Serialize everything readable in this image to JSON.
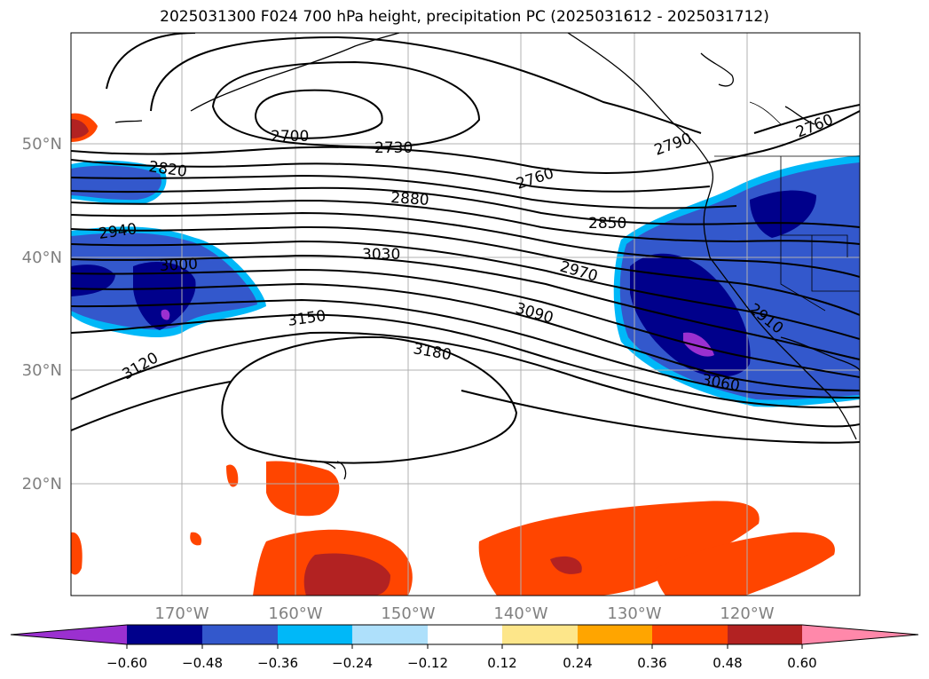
{
  "title": "2025031300 F024 700 hPa height, precipitation PC (2025031612 - 2025031712)",
  "map": {
    "lat_ticks": [
      "50°N",
      "40°N",
      "30°N",
      "20°N"
    ],
    "lon_ticks": [
      "170°W",
      "160°W",
      "150°W",
      "140°W",
      "130°W",
      "120°W"
    ],
    "grid": true,
    "height_contour_labels": [
      "2700",
      "2730",
      "2760",
      "2760",
      "2790",
      "2820",
      "2880",
      "2850",
      "2940",
      "3000",
      "3030",
      "2970",
      "3090",
      "2910",
      "3150",
      "3120",
      "3180",
      "3060"
    ],
    "colors": {
      "height_contour": "#000000",
      "grid": "#b0b0b0",
      "tick_label": "#808080"
    }
  },
  "colorbar": {
    "tick_labels": [
      "−0.60",
      "−0.48",
      "−0.36",
      "−0.24",
      "−0.12",
      "0.12",
      "0.24",
      "0.36",
      "0.48",
      "0.60"
    ],
    "colors": [
      "#9b30d0",
      "#00008b",
      "#3358cc",
      "#00b8f8",
      "#aee0fb",
      "#ffffff",
      "#fde68a",
      "#ffa500",
      "#ff4500",
      "#b22222",
      "#ff88aa"
    ]
  }
}
